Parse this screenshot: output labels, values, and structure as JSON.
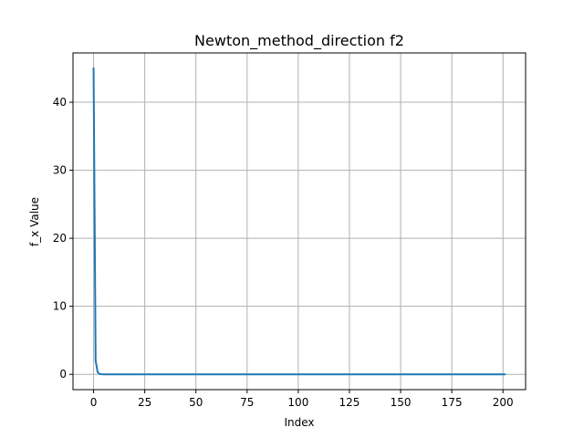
{
  "chart_data": {
    "type": "line",
    "title": "Newton_method_direction f2",
    "xlabel": "Index",
    "ylabel": "f_x Value",
    "xlim": [
      -10.05,
      211.05
    ],
    "ylim": [
      -2.25,
      47.25
    ],
    "xticks": [
      0,
      25,
      50,
      75,
      100,
      125,
      150,
      175,
      200
    ],
    "yticks": [
      0,
      10,
      20,
      30,
      40
    ],
    "grid": true,
    "series": [
      {
        "color": "#1f77b4",
        "x": [
          0,
          1,
          2,
          3,
          4,
          5,
          10,
          25,
          50,
          100,
          150,
          201
        ],
        "y": [
          45,
          2,
          0.3,
          0.05,
          0.01,
          0,
          0,
          0,
          0,
          0,
          0,
          0
        ]
      }
    ]
  }
}
